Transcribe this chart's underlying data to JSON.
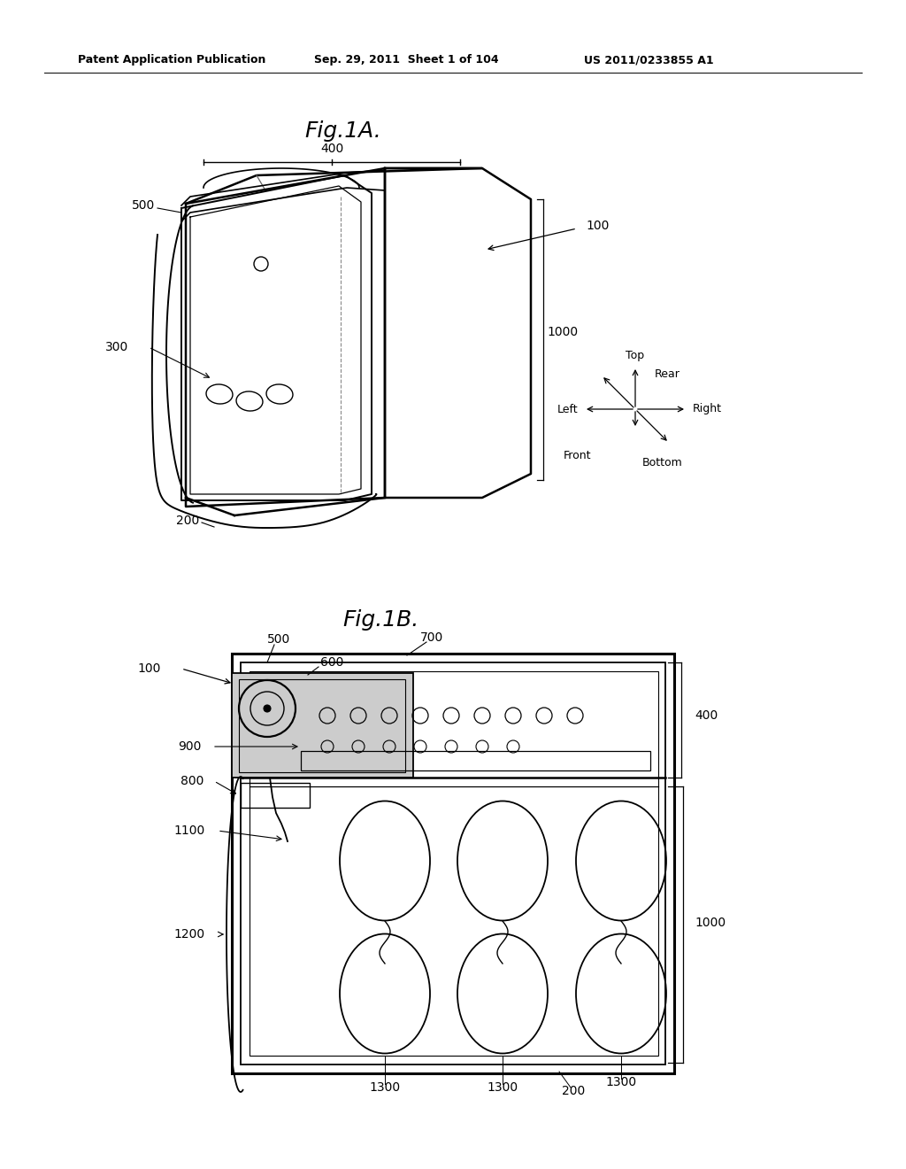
{
  "bg_color": "#ffffff",
  "text_color": "#000000",
  "header_left": "Patent Application Publication",
  "header_mid": "Sep. 29, 2011  Sheet 1 of 104",
  "header_right": "US 2011/0233855 A1",
  "fig1a_title": "Fig.1A.",
  "fig1b_title": "Fig.1B.",
  "line_color": "#000000",
  "line_width": 1.2
}
